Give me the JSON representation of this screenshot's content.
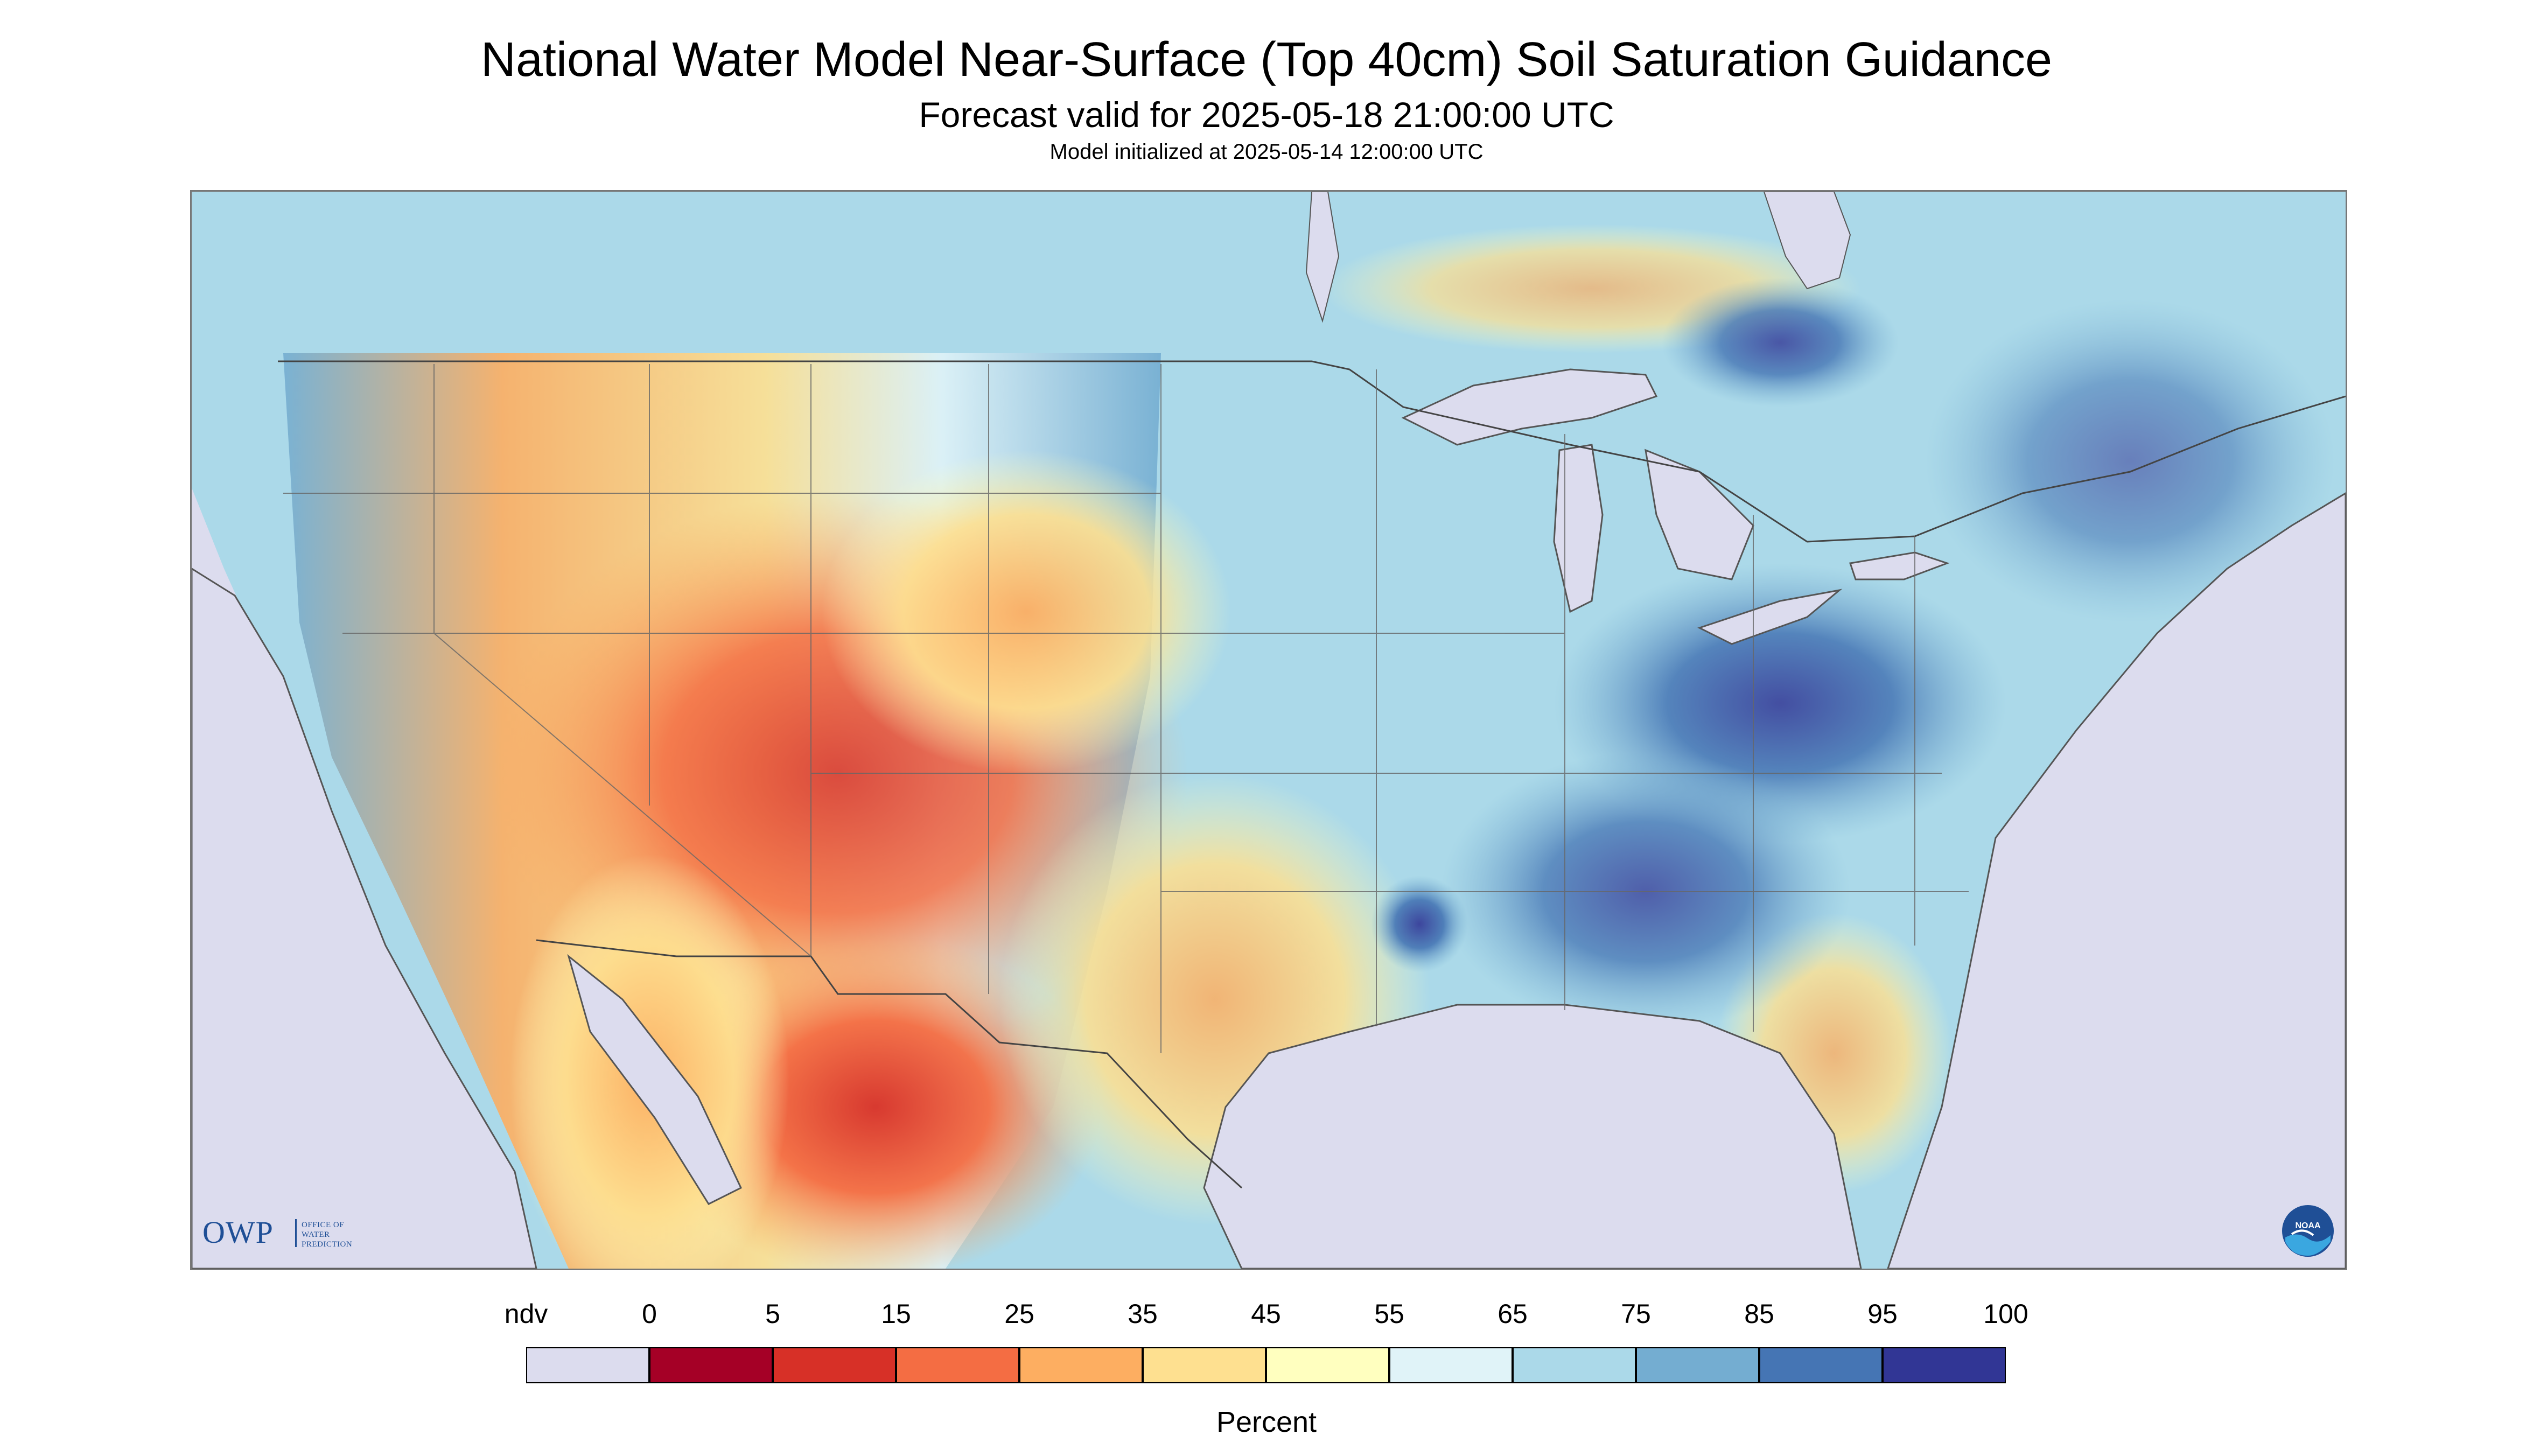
{
  "header": {
    "title": "National Water Model Near-Surface (Top 40cm) Soil Saturation Guidance",
    "subtitle": "Forecast valid for 2025-05-18 21:00:00 UTC",
    "init": "Model initialized at 2025-05-14 12:00:00 UTC"
  },
  "logos": {
    "owp_letters": "OWP",
    "owp_line1": "OFFICE OF",
    "owp_line2": "WATER",
    "owp_line3": "PREDICTION",
    "noaa": "NOAA"
  },
  "legend": {
    "label": "Percent",
    "ticks": [
      "ndv",
      "0",
      "5",
      "15",
      "25",
      "35",
      "45",
      "55",
      "65",
      "75",
      "85",
      "95",
      "100"
    ],
    "bins": [
      {
        "label": "ndv",
        "color": "#dcdcee"
      },
      {
        "label": "0-5",
        "color": "#a50026"
      },
      {
        "label": "5-15",
        "color": "#d73027"
      },
      {
        "label": "15-25",
        "color": "#f46d43"
      },
      {
        "label": "25-35",
        "color": "#fdae61"
      },
      {
        "label": "35-45",
        "color": "#fee090"
      },
      {
        "label": "45-55",
        "color": "#ffffbf"
      },
      {
        "label": "55-65",
        "color": "#e0f3f8"
      },
      {
        "label": "65-75",
        "color": "#abd9e9"
      },
      {
        "label": "75-85",
        "color": "#74add1"
      },
      {
        "label": "85-95",
        "color": "#4575b4"
      },
      {
        "label": "95-100",
        "color": "#313695"
      }
    ]
  },
  "colors": {
    "ndv": "#dcdcee",
    "water": "#dcdcee",
    "border": "#555555",
    "frame": "#777777"
  }
}
